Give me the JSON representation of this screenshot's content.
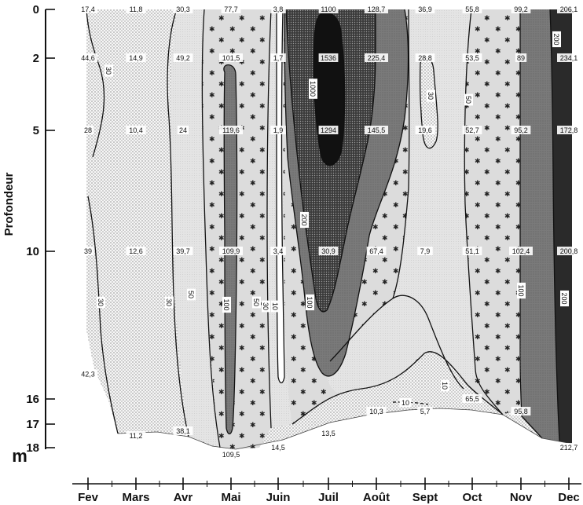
{
  "chart_data": {
    "type": "heatmap",
    "title": "",
    "ylabel": "Profondeur",
    "yunit": "m",
    "xlabel": "",
    "x": [
      "Fev",
      "Mars",
      "Avr",
      "Mai",
      "Juin",
      "Juil",
      "Août",
      "Sept",
      "Oct",
      "Nov",
      "Dec"
    ],
    "y_ticks": [
      0,
      2,
      5,
      10,
      16,
      17,
      18
    ],
    "y_tick_labels": [
      "0",
      "2",
      "5",
      "10",
      "16",
      "17",
      "18"
    ],
    "ylim": [
      0,
      18
    ],
    "contour_levels": [
      10,
      30,
      50,
      100,
      200,
      1000
    ],
    "shading": [
      {
        "range": "<10",
        "pattern": "white"
      },
      {
        "range": "10-30",
        "pattern": "fine-stipple"
      },
      {
        "range": "30-50",
        "pattern": "light-grey"
      },
      {
        "range": "50-100",
        "pattern": "stars"
      },
      {
        "range": "100-200",
        "pattern": "mid-grey"
      },
      {
        "range": "200-1000",
        "pattern": "dark-stipple"
      },
      {
        "range": ">1000",
        "pattern": "black"
      }
    ],
    "measurements": [
      {
        "x": "Fev",
        "depth": 0,
        "label": "17,4"
      },
      {
        "x": "Fev",
        "depth": 2,
        "label": "44,6"
      },
      {
        "x": "Fev",
        "depth": 5,
        "label": "28"
      },
      {
        "x": "Fev",
        "depth": 10,
        "label": "39"
      },
      {
        "x": "Fev",
        "depth": 15,
        "label": "42,3"
      },
      {
        "x": "Mars",
        "depth": 0,
        "label": "11,8"
      },
      {
        "x": "Mars",
        "depth": 2,
        "label": "14,9"
      },
      {
        "x": "Mars",
        "depth": 5,
        "label": "10,4"
      },
      {
        "x": "Mars",
        "depth": 10,
        "label": "12,6"
      },
      {
        "x": "Mars",
        "depth": 17.5,
        "label": "11,2"
      },
      {
        "x": "Avr",
        "depth": 0,
        "label": "30,3"
      },
      {
        "x": "Avr",
        "depth": 2,
        "label": "49,2"
      },
      {
        "x": "Avr",
        "depth": 5,
        "label": "24"
      },
      {
        "x": "Avr",
        "depth": 10,
        "label": "39,7"
      },
      {
        "x": "Avr",
        "depth": 17.3,
        "label": "38,1"
      },
      {
        "x": "Mai",
        "depth": 0,
        "label": "77,7"
      },
      {
        "x": "Mai",
        "depth": 2,
        "label": "101,5"
      },
      {
        "x": "Mai",
        "depth": 5,
        "label": "119,6"
      },
      {
        "x": "Mai",
        "depth": 10,
        "label": "109,9"
      },
      {
        "x": "Mai",
        "depth": 18.3,
        "label": "109,5"
      },
      {
        "x": "Juin",
        "depth": 0,
        "label": "3,8"
      },
      {
        "x": "Juin",
        "depth": 2,
        "label": "1,7"
      },
      {
        "x": "Juin",
        "depth": 5,
        "label": "1,9"
      },
      {
        "x": "Juin",
        "depth": 10,
        "label": "3,4"
      },
      {
        "x": "Juin",
        "depth": 18,
        "label": "14,5"
      },
      {
        "x": "Juil",
        "depth": 0,
        "label": "1100"
      },
      {
        "x": "Juil",
        "depth": 2,
        "label": "1536"
      },
      {
        "x": "Juil",
        "depth": 5,
        "label": "1294"
      },
      {
        "x": "Juil",
        "depth": 10,
        "label": "30,9"
      },
      {
        "x": "Juil",
        "depth": 17.4,
        "label": "13,5"
      },
      {
        "x": "Août",
        "depth": 0,
        "label": "128,7"
      },
      {
        "x": "Août",
        "depth": 2,
        "label": "225,4"
      },
      {
        "x": "Août",
        "depth": 5,
        "label": "145,5"
      },
      {
        "x": "Août",
        "depth": 10,
        "label": "67,4"
      },
      {
        "x": "Août",
        "depth": 16.5,
        "label": "10,3"
      },
      {
        "x": "Sept",
        "depth": 0,
        "label": "36,9"
      },
      {
        "x": "Sept",
        "depth": 2,
        "label": "28,8"
      },
      {
        "x": "Sept",
        "depth": 5,
        "label": "19,6"
      },
      {
        "x": "Sept",
        "depth": 10,
        "label": "7,9"
      },
      {
        "x": "Sept",
        "depth": 16.5,
        "label": "5,7"
      },
      {
        "x": "Oct",
        "depth": 0,
        "label": "55,8"
      },
      {
        "x": "Oct",
        "depth": 2,
        "label": "53,5"
      },
      {
        "x": "Oct",
        "depth": 5,
        "label": "52,7"
      },
      {
        "x": "Oct",
        "depth": 10,
        "label": "51,1"
      },
      {
        "x": "Oct",
        "depth": 16,
        "label": "65,5"
      },
      {
        "x": "Nov",
        "depth": 0,
        "label": "99,2"
      },
      {
        "x": "Nov",
        "depth": 2,
        "label": "89"
      },
      {
        "x": "Nov",
        "depth": 5,
        "label": "95,2"
      },
      {
        "x": "Nov",
        "depth": 10,
        "label": "102,4"
      },
      {
        "x": "Nov",
        "depth": 16.5,
        "label": "95,8"
      },
      {
        "x": "Dec",
        "depth": 0,
        "label": "206,1"
      },
      {
        "x": "Dec",
        "depth": 2,
        "label": "234,1"
      },
      {
        "x": "Dec",
        "depth": 5,
        "label": "172,8"
      },
      {
        "x": "Dec",
        "depth": 10,
        "label": "200,8"
      },
      {
        "x": "Dec",
        "depth": 18,
        "label": "212,7"
      }
    ],
    "isoline_labels": [
      "30",
      "30",
      "30",
      "50",
      "100",
      "50",
      "30",
      "10",
      "1000",
      "200",
      "100",
      "30",
      "50",
      "10",
      "100",
      "200",
      "200",
      "10"
    ],
    "legend": "none",
    "grid": false
  }
}
